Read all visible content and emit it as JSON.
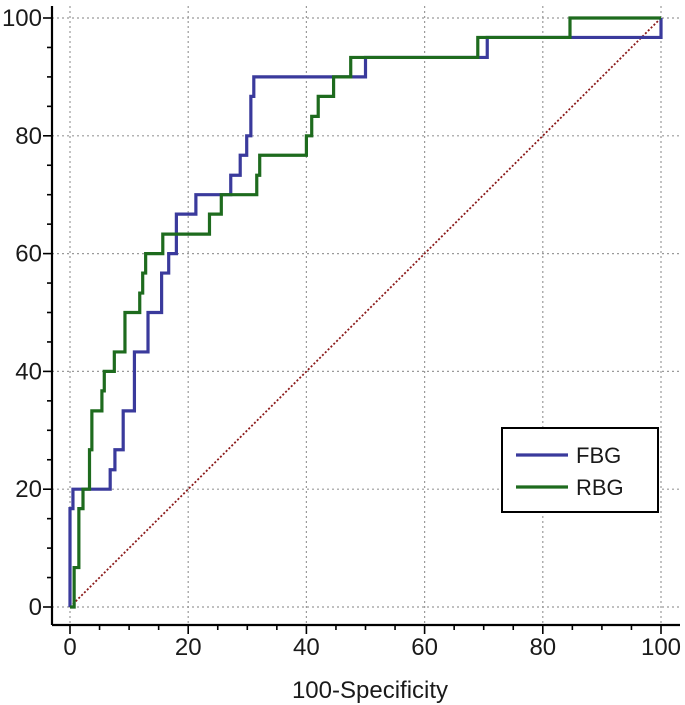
{
  "chart_data": {
    "type": "line",
    "xlabel": "100-Specificity",
    "ylabel": "",
    "xlim": [
      0,
      100
    ],
    "ylim": [
      0,
      100
    ],
    "x_ticks": [
      "0",
      "20",
      "40",
      "60",
      "80",
      "100"
    ],
    "y_ticks": [
      "0",
      "20",
      "40",
      "60",
      "80",
      "100"
    ],
    "grid": true,
    "legend_position": "bottom-right",
    "reference_line": {
      "from": [
        0,
        0
      ],
      "to": [
        100,
        100
      ],
      "color": "#8b1a1a"
    },
    "series": [
      {
        "name": "FBG",
        "color": "#3a3a9c",
        "points": [
          [
            0,
            0
          ],
          [
            0,
            16.7
          ],
          [
            0.5,
            16.7
          ],
          [
            0.5,
            20
          ],
          [
            6.8,
            20
          ],
          [
            6.8,
            23.3
          ],
          [
            7.6,
            23.3
          ],
          [
            7.6,
            26.7
          ],
          [
            9,
            26.7
          ],
          [
            9,
            33.3
          ],
          [
            10.9,
            33.3
          ],
          [
            10.9,
            43.3
          ],
          [
            13.2,
            43.3
          ],
          [
            13.2,
            50
          ],
          [
            15.5,
            50
          ],
          [
            15.5,
            56.7
          ],
          [
            16.7,
            56.7
          ],
          [
            16.7,
            60
          ],
          [
            18,
            60
          ],
          [
            18,
            66.7
          ],
          [
            21.3,
            66.7
          ],
          [
            21.3,
            70
          ],
          [
            27.2,
            70
          ],
          [
            27.2,
            73.3
          ],
          [
            28.8,
            73.3
          ],
          [
            28.8,
            76.7
          ],
          [
            29.9,
            76.7
          ],
          [
            29.9,
            80
          ],
          [
            30.6,
            80
          ],
          [
            30.6,
            86.7
          ],
          [
            31.1,
            86.7
          ],
          [
            31.1,
            90
          ],
          [
            50,
            90
          ],
          [
            50,
            93.3
          ],
          [
            70.6,
            93.3
          ],
          [
            70.6,
            96.7
          ],
          [
            100,
            96.7
          ],
          [
            100,
            100
          ]
        ]
      },
      {
        "name": "RBG",
        "color": "#1e6b1e",
        "points": [
          [
            0,
            0
          ],
          [
            0.7,
            0
          ],
          [
            0.7,
            6.7
          ],
          [
            1.5,
            6.7
          ],
          [
            1.5,
            16.7
          ],
          [
            2.2,
            16.7
          ],
          [
            2.2,
            20
          ],
          [
            3.3,
            20
          ],
          [
            3.3,
            26.7
          ],
          [
            3.7,
            26.7
          ],
          [
            3.7,
            33.3
          ],
          [
            5.4,
            33.3
          ],
          [
            5.4,
            36.7
          ],
          [
            5.8,
            36.7
          ],
          [
            5.8,
            40
          ],
          [
            7.5,
            40
          ],
          [
            7.5,
            43.3
          ],
          [
            9.3,
            43.3
          ],
          [
            9.3,
            50
          ],
          [
            11.8,
            50
          ],
          [
            11.8,
            53.3
          ],
          [
            12.3,
            53.3
          ],
          [
            12.3,
            56.7
          ],
          [
            12.8,
            56.7
          ],
          [
            12.8,
            60
          ],
          [
            15.7,
            60
          ],
          [
            15.7,
            63.3
          ],
          [
            23.6,
            63.3
          ],
          [
            23.6,
            66.7
          ],
          [
            25.6,
            66.7
          ],
          [
            25.6,
            70
          ],
          [
            31.6,
            70
          ],
          [
            31.6,
            73.3
          ],
          [
            32.1,
            73.3
          ],
          [
            32.1,
            76.7
          ],
          [
            40,
            76.7
          ],
          [
            40,
            80
          ],
          [
            40.9,
            80
          ],
          [
            40.9,
            83.3
          ],
          [
            42,
            83.3
          ],
          [
            42,
            86.7
          ],
          [
            44.6,
            86.7
          ],
          [
            44.6,
            90
          ],
          [
            47.5,
            90
          ],
          [
            47.5,
            93.3
          ],
          [
            69,
            93.3
          ],
          [
            69,
            96.7
          ],
          [
            84.6,
            96.7
          ],
          [
            84.6,
            100
          ],
          [
            100,
            100
          ]
        ]
      }
    ]
  }
}
